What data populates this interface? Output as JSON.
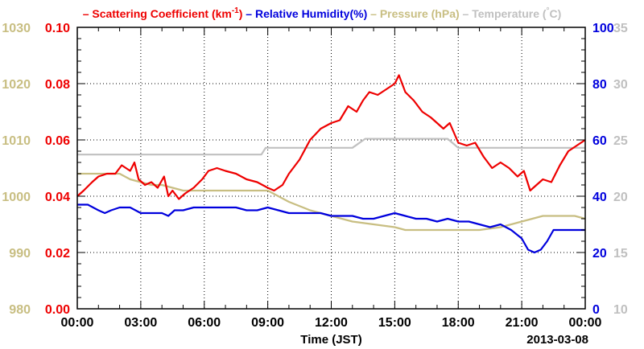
{
  "colors": {
    "scattering": "#ee0000",
    "humidity": "#0000dd",
    "pressure": "#c8be82",
    "temperature": "#c0c0c0",
    "grid": "#000000"
  },
  "chart_data": {
    "type": "line",
    "xlabel": "Time (JST)",
    "date_label": "2013-03-08",
    "x_ticks": [
      "00:00",
      "03:00",
      "06:00",
      "09:00",
      "12:00",
      "15:00",
      "18:00",
      "21:00",
      "00:00"
    ],
    "xlim_hours": [
      0,
      24
    ],
    "grid": "dotted",
    "legend_position": "top",
    "legend": [
      {
        "prefix": "– ",
        "text": "Scattering Coefficient (km",
        "sup": "-1",
        "suffix": ")",
        "color": "#ee0000"
      },
      {
        "prefix": " – ",
        "text": "Relative Humidity(%)",
        "color": "#0000dd"
      },
      {
        "prefix": " – ",
        "text": "Pressure (hPa)",
        "color": "#c8be82"
      },
      {
        "prefix": " – ",
        "text": "Temperature (",
        "sup": "°",
        "suffix": "C)",
        "color": "#c0c0c0"
      }
    ],
    "axes": {
      "scattering": {
        "side": "left-inner",
        "range": [
          0.0,
          0.1
        ],
        "ticks": [
          "0.00",
          "0.02",
          "0.04",
          "0.06",
          "0.08",
          "0.10"
        ]
      },
      "pressure": {
        "side": "left-outer",
        "range": [
          980,
          1030
        ],
        "ticks": [
          "980",
          "990",
          "1000",
          "1010",
          "1020",
          "1030"
        ]
      },
      "humidity": {
        "side": "right-inner",
        "range": [
          0,
          100
        ],
        "ticks": [
          "0",
          "20",
          "40",
          "60",
          "80",
          "100"
        ]
      },
      "temperature": {
        "side": "right-outer",
        "range": [
          10,
          35
        ],
        "ticks": [
          "10",
          "15",
          "20",
          "25",
          "30",
          "35"
        ]
      }
    },
    "series": [
      {
        "name": "Scattering Coefficient (km-1)",
        "key": "scattering",
        "x": [
          0,
          0.3,
          0.7,
          1.0,
          1.4,
          1.8,
          2.1,
          2.5,
          2.7,
          2.9,
          3.2,
          3.5,
          3.8,
          4.1,
          4.3,
          4.5,
          4.8,
          5.1,
          5.5,
          5.9,
          6.2,
          6.6,
          7.0,
          7.5,
          8.0,
          8.5,
          9.0,
          9.3,
          9.7,
          10.0,
          10.5,
          11.0,
          11.5,
          12.0,
          12.4,
          12.8,
          13.2,
          13.5,
          13.8,
          14.2,
          14.6,
          15.0,
          15.2,
          15.5,
          15.9,
          16.3,
          16.7,
          17.0,
          17.3,
          17.6,
          18.0,
          18.4,
          18.8,
          19.2,
          19.6,
          20.0,
          20.4,
          20.8,
          21.1,
          21.4,
          21.7,
          22.0,
          22.4,
          22.8,
          23.2,
          23.6,
          24.0
        ],
        "y": [
          0.04,
          0.042,
          0.045,
          0.047,
          0.048,
          0.048,
          0.051,
          0.049,
          0.052,
          0.046,
          0.044,
          0.045,
          0.043,
          0.047,
          0.04,
          0.042,
          0.039,
          0.041,
          0.043,
          0.046,
          0.049,
          0.05,
          0.049,
          0.048,
          0.046,
          0.045,
          0.043,
          0.042,
          0.044,
          0.048,
          0.053,
          0.06,
          0.064,
          0.066,
          0.067,
          0.072,
          0.07,
          0.074,
          0.077,
          0.076,
          0.078,
          0.08,
          0.083,
          0.077,
          0.074,
          0.07,
          0.068,
          0.066,
          0.064,
          0.066,
          0.059,
          0.058,
          0.059,
          0.054,
          0.05,
          0.052,
          0.05,
          0.047,
          0.049,
          0.042,
          0.044,
          0.046,
          0.045,
          0.051,
          0.056,
          0.058,
          0.06
        ]
      },
      {
        "name": "Relative Humidity(%)",
        "key": "humidity",
        "x": [
          0,
          0.5,
          1.0,
          1.3,
          1.6,
          2.0,
          2.5,
          3.0,
          3.5,
          4.0,
          4.3,
          4.6,
          5.0,
          5.5,
          6.0,
          6.5,
          7.0,
          7.5,
          8.0,
          8.5,
          9.0,
          9.5,
          10.0,
          10.5,
          11.0,
          11.5,
          12.0,
          12.5,
          13.0,
          13.5,
          14.0,
          14.5,
          15.0,
          15.5,
          16.0,
          16.5,
          17.0,
          17.5,
          18.0,
          18.5,
          19.0,
          19.5,
          20.0,
          20.5,
          21.0,
          21.3,
          21.6,
          21.9,
          22.2,
          22.5,
          23.0,
          24.0
        ],
        "y": [
          37,
          37,
          35,
          34,
          35,
          36,
          36,
          34,
          34,
          34,
          33,
          35,
          35,
          36,
          36,
          36,
          36,
          36,
          35,
          35,
          36,
          35,
          34,
          34,
          34,
          34,
          33,
          33,
          33,
          32,
          32,
          33,
          34,
          33,
          32,
          32,
          31,
          32,
          31,
          31,
          30,
          29,
          30,
          28,
          25,
          21,
          20,
          21,
          24,
          28,
          28,
          28
        ]
      },
      {
        "name": "Pressure (hPa)",
        "key": "pressure",
        "x": [
          0,
          2.0,
          2.5,
          3.5,
          4.0,
          5.0,
          6.0,
          7.0,
          8.0,
          9.0,
          9.5,
          10.0,
          11.0,
          12.0,
          13.0,
          14.0,
          15.0,
          15.5,
          16.0,
          17.0,
          18.0,
          19.0,
          20.0,
          20.5,
          21.0,
          21.5,
          22.0,
          22.5,
          23.0,
          23.5,
          24.0
        ],
        "y": [
          1004,
          1004,
          1003,
          1002,
          1002,
          1001,
          1001,
          1001,
          1001,
          1001,
          1000,
          999,
          997.5,
          996.5,
          995.5,
          995,
          994.5,
          994,
          994,
          994,
          994,
          994,
          994.5,
          995,
          995.5,
          996,
          996.5,
          996.5,
          996.5,
          996.5,
          996
        ]
      },
      {
        "name": "Temperature (°C)",
        "key": "temperature",
        "x": [
          0,
          8.7,
          8.9,
          9.5,
          10.0,
          10.5,
          11.0,
          12.0,
          13.0,
          13.6,
          14.0,
          15.0,
          15.5,
          16.0,
          17.0,
          17.5,
          18.0,
          19.0,
          20.0,
          21.0,
          22.0,
          23.0,
          24.0
        ],
        "y": [
          23.7,
          23.7,
          24.3,
          24.3,
          24.3,
          24.3,
          24.3,
          24.3,
          24.3,
          25.1,
          25.1,
          25.1,
          25.1,
          25.1,
          25.1,
          25.1,
          24.3,
          24.3,
          24.3,
          24.3,
          24.3,
          24.3,
          24.3
        ]
      }
    ]
  }
}
